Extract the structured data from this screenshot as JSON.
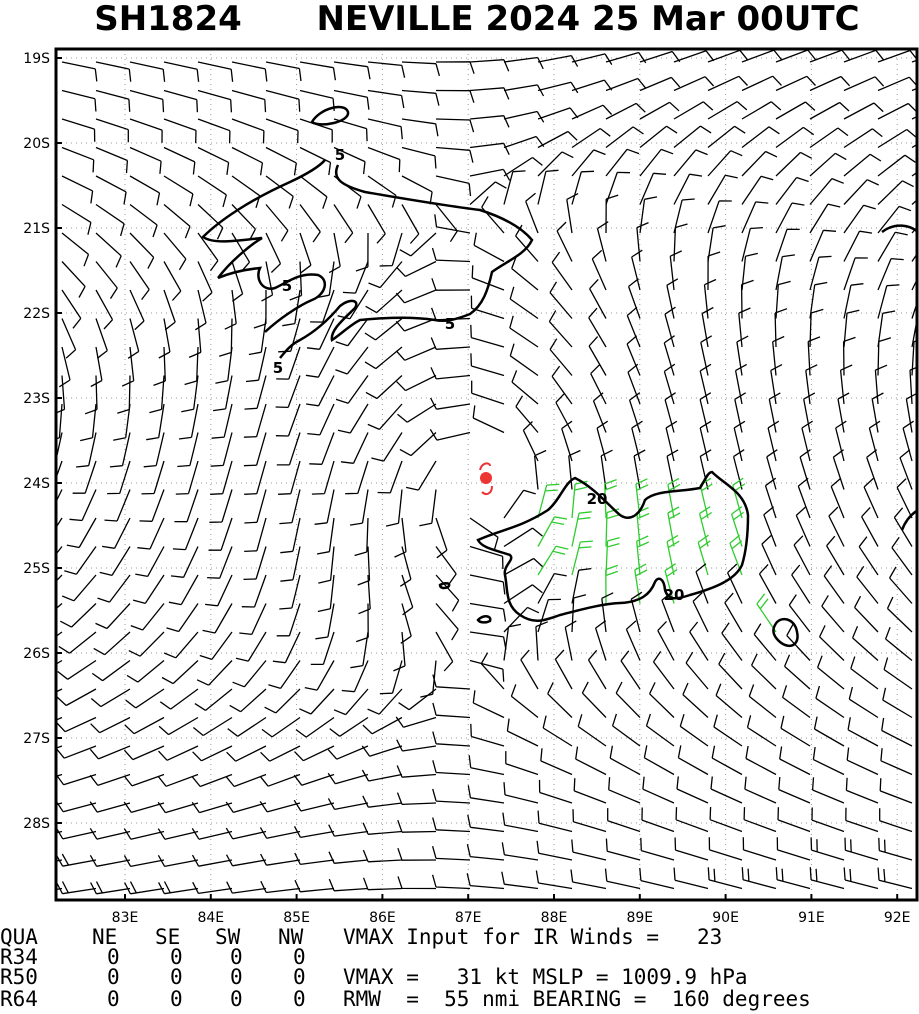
{
  "header": {
    "storm_id": "SH1824",
    "title": "NEVILLE 2024 25 Mar 00UTC"
  },
  "map": {
    "lat_labels": [
      "19S",
      "20S",
      "21S",
      "22S",
      "23S",
      "24S",
      "25S",
      "26S",
      "27S",
      "28S"
    ],
    "lon_labels": [
      "83E",
      "84E",
      "85E",
      "86E",
      "87E",
      "88E",
      "89E",
      "90E",
      "91E",
      "92E"
    ],
    "contour_labels": [
      "5",
      "5",
      "5",
      "5",
      "20",
      "20"
    ]
  },
  "table": {
    "header": [
      "QUA",
      "NE",
      "SE",
      "SW",
      "NW"
    ],
    "rows": [
      [
        "R34",
        "0",
        "0",
        "0",
        "0"
      ],
      [
        "R50",
        "0",
        "0",
        "0",
        "0"
      ],
      [
        "R64",
        "0",
        "0",
        "0",
        "0"
      ]
    ],
    "notes": [
      "VMAX Input for IR Winds =   23",
      "VMAX =   31 kt MSLP = 1009.9 hPa",
      "RMW  =  55 nmi BEARING =  160 degrees"
    ]
  }
}
